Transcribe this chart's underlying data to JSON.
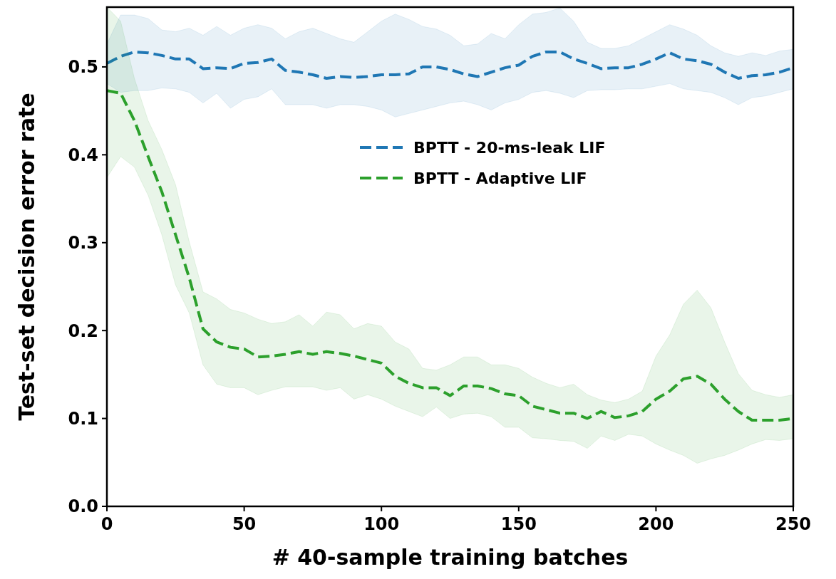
{
  "chart_data": {
    "type": "line",
    "xlabel": "# 40-sample training batches",
    "ylabel": "Test-set decision error rate",
    "x": [
      0,
      5,
      10,
      15,
      20,
      25,
      30,
      35,
      40,
      45,
      50,
      55,
      60,
      65,
      70,
      75,
      80,
      85,
      90,
      95,
      100,
      105,
      110,
      115,
      120,
      125,
      130,
      135,
      140,
      145,
      150,
      155,
      160,
      165,
      170,
      175,
      180,
      185,
      190,
      195,
      200,
      205,
      210,
      215,
      220,
      225,
      230,
      235,
      240,
      245,
      250
    ],
    "xlim": [
      0,
      250
    ],
    "xticks": [
      0,
      50,
      100,
      150,
      200,
      250
    ],
    "ylim": [
      0,
      0.568
    ],
    "yticks": [
      {
        "value": 0,
        "label": "0.0"
      },
      0.1,
      0.2,
      0.3,
      0.4,
      0.5
    ],
    "legend": "top right",
    "line_style": "dashed",
    "grid": false,
    "series": [
      {
        "name": "BPTT - 20-ms-leak LIF",
        "color": "#1f77b4",
        "values": [
          0.504,
          0.512,
          0.517,
          0.516,
          0.513,
          0.509,
          0.509,
          0.498,
          0.499,
          0.498,
          0.504,
          0.505,
          0.509,
          0.496,
          0.494,
          0.491,
          0.487,
          0.489,
          0.488,
          0.489,
          0.491,
          0.491,
          0.492,
          0.5,
          0.5,
          0.497,
          0.492,
          0.489,
          0.494,
          0.499,
          0.502,
          0.512,
          0.517,
          0.517,
          0.509,
          0.504,
          0.498,
          0.499,
          0.499,
          0.503,
          0.509,
          0.516,
          0.509,
          0.507,
          0.503,
          0.494,
          0.487,
          0.49,
          0.491,
          0.494,
          0.499
        ],
        "upper": [
          0.526,
          0.559,
          0.559,
          0.555,
          0.542,
          0.54,
          0.544,
          0.536,
          0.546,
          0.536,
          0.544,
          0.548,
          0.544,
          0.532,
          0.54,
          0.544,
          0.538,
          0.532,
          0.528,
          0.54,
          0.552,
          0.56,
          0.554,
          0.546,
          0.543,
          0.536,
          0.524,
          0.526,
          0.538,
          0.532,
          0.548,
          0.56,
          0.562,
          0.567,
          0.552,
          0.528,
          0.521,
          0.521,
          0.524,
          0.532,
          0.54,
          0.548,
          0.543,
          0.536,
          0.524,
          0.516,
          0.512,
          0.516,
          0.513,
          0.518,
          0.52
        ],
        "lower": [
          0.481,
          0.471,
          0.473,
          0.473,
          0.476,
          0.475,
          0.471,
          0.459,
          0.47,
          0.453,
          0.463,
          0.466,
          0.475,
          0.457,
          0.457,
          0.457,
          0.453,
          0.457,
          0.457,
          0.455,
          0.451,
          0.443,
          0.447,
          0.451,
          0.455,
          0.459,
          0.461,
          0.457,
          0.451,
          0.459,
          0.463,
          0.471,
          0.473,
          0.47,
          0.465,
          0.473,
          0.474,
          0.474,
          0.475,
          0.475,
          0.478,
          0.481,
          0.475,
          0.473,
          0.471,
          0.465,
          0.457,
          0.465,
          0.467,
          0.471,
          0.475
        ]
      },
      {
        "name": "BPTT - Adaptive LIF",
        "color": "#2ca02c",
        "values": [
          0.473,
          0.47,
          0.439,
          0.398,
          0.358,
          0.309,
          0.26,
          0.202,
          0.187,
          0.181,
          0.179,
          0.17,
          0.171,
          0.173,
          0.176,
          0.173,
          0.176,
          0.174,
          0.171,
          0.167,
          0.163,
          0.148,
          0.14,
          0.135,
          0.135,
          0.126,
          0.137,
          0.137,
          0.134,
          0.128,
          0.126,
          0.114,
          0.11,
          0.106,
          0.106,
          0.1,
          0.108,
          0.101,
          0.103,
          0.108,
          0.122,
          0.131,
          0.145,
          0.148,
          0.139,
          0.122,
          0.108,
          0.098,
          0.098,
          0.098,
          0.1
        ],
        "upper": [
          0.568,
          0.552,
          0.487,
          0.439,
          0.406,
          0.366,
          0.301,
          0.244,
          0.236,
          0.224,
          0.22,
          0.213,
          0.208,
          0.21,
          0.218,
          0.205,
          0.221,
          0.218,
          0.202,
          0.208,
          0.205,
          0.187,
          0.179,
          0.157,
          0.155,
          0.161,
          0.17,
          0.17,
          0.161,
          0.161,
          0.157,
          0.147,
          0.14,
          0.135,
          0.139,
          0.127,
          0.121,
          0.118,
          0.122,
          0.131,
          0.171,
          0.195,
          0.23,
          0.246,
          0.226,
          0.187,
          0.151,
          0.132,
          0.127,
          0.124,
          0.127
        ],
        "lower": [
          0.374,
          0.398,
          0.386,
          0.354,
          0.309,
          0.252,
          0.22,
          0.161,
          0.139,
          0.135,
          0.135,
          0.127,
          0.132,
          0.136,
          0.136,
          0.136,
          0.132,
          0.135,
          0.122,
          0.127,
          0.122,
          0.114,
          0.108,
          0.102,
          0.113,
          0.1,
          0.105,
          0.106,
          0.102,
          0.09,
          0.09,
          0.078,
          0.077,
          0.075,
          0.074,
          0.066,
          0.08,
          0.075,
          0.082,
          0.08,
          0.071,
          0.064,
          0.058,
          0.049,
          0.054,
          0.058,
          0.064,
          0.071,
          0.076,
          0.075,
          0.077
        ]
      }
    ]
  }
}
